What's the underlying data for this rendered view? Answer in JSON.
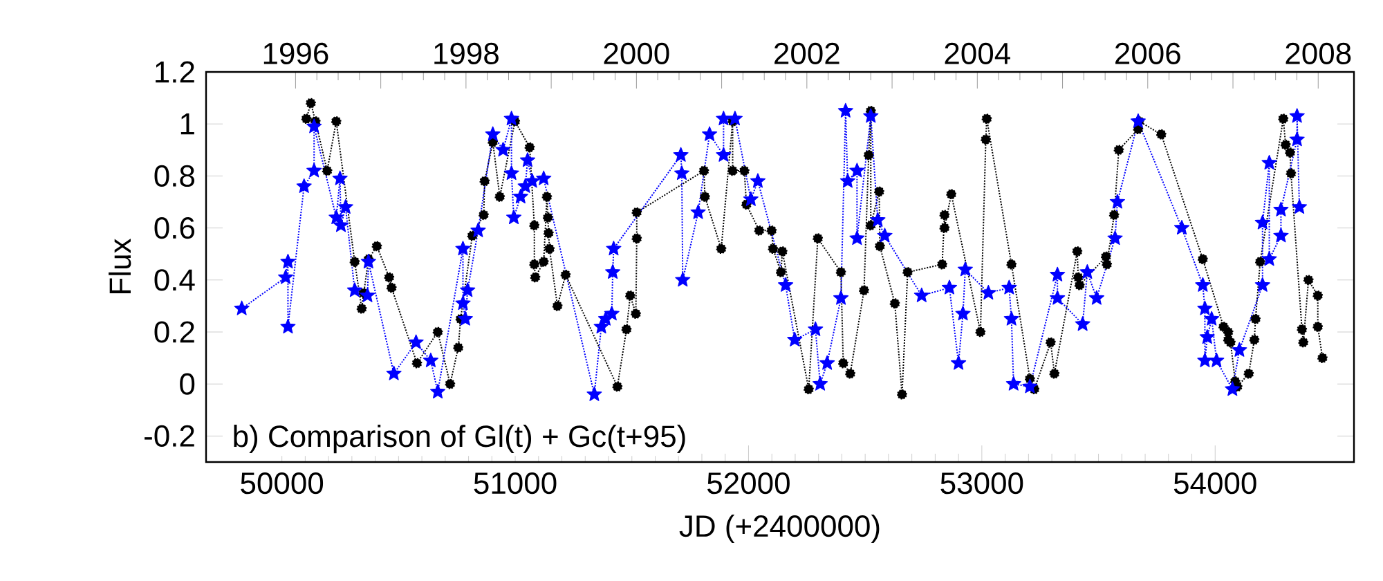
{
  "chart_data": {
    "type": "line",
    "xlabel": "JD (+2400000)",
    "ylabel": "Flux",
    "annotations": [
      "b) Comparison of Gl(t) + Gc(t+95)"
    ],
    "xlim": [
      49675,
      54595
    ],
    "xticks": [
      50000,
      51000,
      52000,
      53000,
      54000
    ],
    "ylim": [
      -0.3,
      1.2
    ],
    "yticks": [
      -0.2,
      0,
      0.2,
      0.4,
      0.6,
      0.8,
      1,
      1.2
    ],
    "x2lim": [
      1994.95,
      2008.42
    ],
    "x2ticks": [
      1996,
      {
        "value": 1997,
        "label": null
      },
      1998,
      {
        "value": 1999,
        "label": null
      },
      2000,
      {
        "value": 2001,
        "label": null
      },
      2002,
      {
        "value": 2003,
        "label": null
      },
      2004,
      {
        "value": 2005,
        "label": null
      },
      2006,
      {
        "value": 2007,
        "label": null
      },
      2008
    ],
    "line_style": "dotted",
    "grid": false,
    "series": [
      {
        "color": "#000000",
        "marker": "circle",
        "x": [
          50105,
          50124,
          50144,
          50194,
          50233,
          50312,
          50342,
          50351,
          50371,
          50407,
          50460,
          50470,
          50579,
          50668,
          50721,
          50756,
          50766,
          50816,
          50865,
          50869,
          50904,
          50934,
          50999,
          51062,
          51082,
          51082,
          51086,
          51122,
          51136,
          51140,
          51143,
          51147,
          51181,
          51216,
          51438,
          51477,
          51493,
          51517,
          51521,
          51521,
          51809,
          51813,
          51883,
          51932,
          51932,
          51982,
          51991,
          52046,
          52099,
          52105,
          52139,
          52145,
          52258,
          52297,
          52396,
          52406,
          52436,
          52495,
          52515,
          52524,
          52524,
          52560,
          52563,
          52627,
          52658,
          52682,
          52830,
          52840,
          52840,
          52869,
          52994,
          53017,
          53021,
          53127,
          53206,
          53225,
          53295,
          53311,
          53409,
          53413,
          53419,
          53532,
          53536,
          53567,
          53587,
          53670,
          53674,
          53769,
          53947,
          54036,
          54056,
          54056,
          54066,
          54086,
          54095,
          54144,
          54168,
          54173,
          54193,
          54292,
          54302,
          54321,
          54325,
          54372,
          54378,
          54400,
          54440,
          54440,
          54460
        ],
        "values": [
          1.02,
          1.08,
          1.01,
          0.82,
          1.01,
          0.47,
          0.29,
          0.35,
          0.48,
          0.53,
          0.41,
          0.37,
          0.08,
          0.2,
          0.0,
          0.14,
          0.25,
          0.57,
          0.65,
          0.78,
          0.93,
          0.72,
          1.01,
          0.91,
          0.61,
          0.46,
          0.41,
          0.47,
          0.72,
          0.64,
          0.58,
          0.52,
          0.3,
          0.42,
          -0.01,
          0.21,
          0.34,
          0.27,
          0.56,
          0.66,
          0.82,
          0.72,
          0.52,
          1.01,
          0.82,
          0.82,
          0.69,
          0.59,
          0.59,
          0.52,
          0.43,
          0.51,
          -0.02,
          0.56,
          0.43,
          0.08,
          0.04,
          0.36,
          0.88,
          1.05,
          0.61,
          0.74,
          0.53,
          0.31,
          -0.04,
          0.43,
          0.46,
          0.65,
          0.6,
          0.73,
          0.2,
          0.94,
          1.02,
          0.46,
          0.02,
          -0.02,
          0.16,
          0.04,
          0.51,
          0.41,
          0.38,
          0.49,
          0.46,
          0.65,
          0.9,
          0.98,
          1.01,
          0.96,
          0.48,
          0.22,
          0.2,
          0.17,
          0.16,
          0.01,
          -0.01,
          0.04,
          0.17,
          0.25,
          0.47,
          1.02,
          0.92,
          0.89,
          0.81,
          0.21,
          0.16,
          0.4,
          0.34,
          0.22,
          0.1
        ]
      },
      {
        "color": "#0000ff",
        "marker": "star",
        "x": [
          49828,
          50016,
          50026,
          50026,
          50095,
          50138,
          50138,
          50233,
          50249,
          50253,
          50273,
          50312,
          50367,
          50371,
          50480,
          50575,
          50638,
          50668,
          50776,
          50776,
          50786,
          50796,
          50841,
          50904,
          50948,
          50984,
          50984,
          50994,
          51023,
          51043,
          51053,
          51073,
          51122,
          51339,
          51369,
          51388,
          51414,
          51418,
          51422,
          51710,
          51714,
          51718,
          51784,
          51833,
          51893,
          51893,
          51942,
          52010,
          52040,
          52159,
          52198,
          52287,
          52307,
          52337,
          52396,
          52416,
          52425,
          52465,
          52465,
          52524,
          52554,
          52584,
          52742,
          52861,
          52900,
          52919,
          52929,
          53028,
          53117,
          53127,
          53136,
          53206,
          53324,
          53324,
          53432,
          53452,
          53492,
          53571,
          53581,
          53670,
          53857,
          53947,
          53956,
          53956,
          53966,
          53985,
          54006,
          54074,
          54104,
          54203,
          54203,
          54232,
          54232,
          54282,
          54282,
          54351,
          54351,
          54361
        ],
        "values": [
          0.29,
          0.41,
          0.47,
          0.22,
          0.76,
          0.82,
          0.99,
          0.64,
          0.79,
          0.61,
          0.68,
          0.36,
          0.34,
          0.47,
          0.04,
          0.16,
          0.09,
          -0.03,
          0.52,
          0.31,
          0.25,
          0.36,
          0.59,
          0.96,
          0.9,
          1.02,
          0.81,
          0.64,
          0.72,
          0.76,
          0.86,
          0.78,
          0.79,
          -0.04,
          0.22,
          0.25,
          0.27,
          0.43,
          0.52,
          0.88,
          0.81,
          0.4,
          0.66,
          0.96,
          0.88,
          1.02,
          1.02,
          0.71,
          0.78,
          0.38,
          0.17,
          0.21,
          0.0,
          0.08,
          0.33,
          1.05,
          0.78,
          0.82,
          0.56,
          1.03,
          0.63,
          0.57,
          0.34,
          0.37,
          0.08,
          0.27,
          0.44,
          0.35,
          0.37,
          0.25,
          0.0,
          -0.01,
          0.42,
          0.33,
          0.23,
          0.43,
          0.33,
          0.56,
          0.7,
          1.01,
          0.6,
          0.38,
          0.29,
          0.09,
          0.18,
          0.25,
          0.09,
          -0.02,
          0.13,
          0.38,
          0.62,
          0.85,
          0.48,
          0.57,
          0.67,
          0.94,
          1.03,
          0.68
        ]
      }
    ]
  }
}
